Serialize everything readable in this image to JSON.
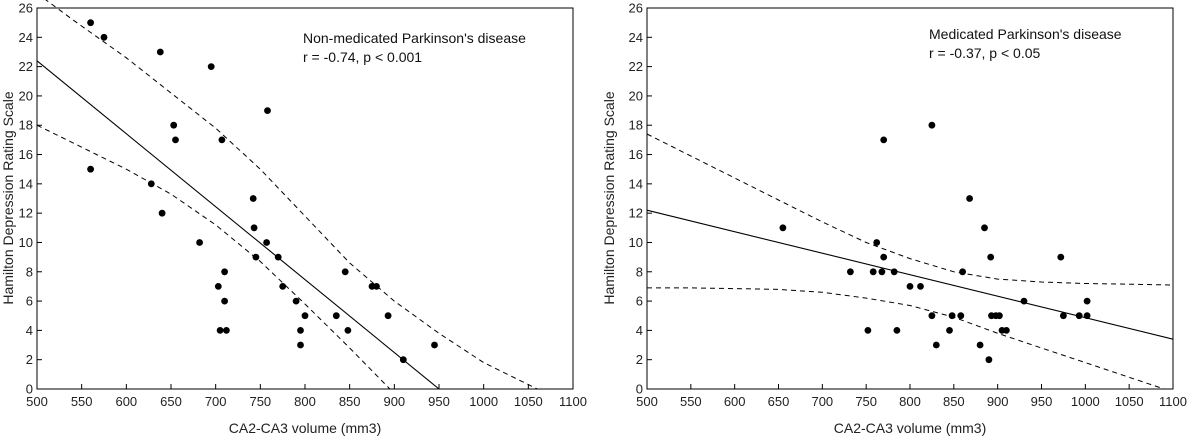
{
  "colors": {
    "ink": "#000000",
    "background": "#ffffff"
  },
  "chart_data": [
    {
      "type": "scatter",
      "title": "",
      "xlabel": "CA2-CA3 volume (mm3)",
      "ylabel": "Hamilton Depression Rating Scale",
      "xlim": [
        500,
        1100
      ],
      "ylim": [
        0,
        26
      ],
      "xticks": [
        500,
        550,
        600,
        650,
        700,
        750,
        800,
        850,
        900,
        950,
        1000,
        1050,
        1100
      ],
      "yticks": [
        0,
        2,
        4,
        6,
        8,
        10,
        12,
        14,
        16,
        18,
        20,
        22,
        24,
        26
      ],
      "annotation": {
        "group": "Non-medicated Parkinson's disease",
        "stats": "r = -0.74, p < 0.001"
      },
      "points": [
        [
          560,
          25
        ],
        [
          575,
          24
        ],
        [
          638,
          23
        ],
        [
          695,
          22
        ],
        [
          758,
          19
        ],
        [
          653,
          18
        ],
        [
          655,
          17
        ],
        [
          707,
          17
        ],
        [
          560,
          15
        ],
        [
          628,
          14
        ],
        [
          640,
          12
        ],
        [
          742,
          13
        ],
        [
          743,
          11
        ],
        [
          682,
          10
        ],
        [
          757,
          10
        ],
        [
          745,
          9
        ],
        [
          770,
          9
        ],
        [
          710,
          8
        ],
        [
          845,
          8
        ],
        [
          703,
          7
        ],
        [
          775,
          7
        ],
        [
          875,
          7
        ],
        [
          880,
          7
        ],
        [
          710,
          6
        ],
        [
          790,
          6
        ],
        [
          705,
          4
        ],
        [
          712,
          4
        ],
        [
          795,
          4
        ],
        [
          848,
          4
        ],
        [
          800,
          5
        ],
        [
          835,
          5
        ],
        [
          893,
          5
        ],
        [
          795,
          3
        ],
        [
          945,
          3
        ],
        [
          910,
          2
        ]
      ],
      "fit_line": {
        "x": [
          500,
          950
        ],
        "y": [
          22.4,
          0
        ]
      },
      "ci_upper": {
        "x": [
          500,
          540,
          600,
          650,
          700,
          750,
          800,
          850,
          900,
          950,
          1000,
          1060
        ],
        "y": [
          27,
          25.2,
          22.6,
          20.2,
          17.8,
          15.0,
          11.8,
          8.6,
          6.0,
          3.8,
          1.8,
          0
        ]
      },
      "ci_lower": {
        "x": [
          500,
          550,
          600,
          650,
          700,
          750,
          800,
          850,
          895
        ],
        "y": [
          18,
          16.5,
          15.0,
          13.3,
          11.2,
          8.7,
          5.8,
          2.8,
          0
        ]
      }
    },
    {
      "type": "scatter",
      "title": "",
      "xlabel": "CA2-CA3 volume (mm3)",
      "ylabel": "Hamilton Depression Rating Scale",
      "xlim": [
        500,
        1100
      ],
      "ylim": [
        0,
        26
      ],
      "xticks": [
        500,
        550,
        600,
        650,
        700,
        750,
        800,
        850,
        900,
        950,
        1000,
        1050,
        1100
      ],
      "yticks": [
        0,
        2,
        4,
        6,
        8,
        10,
        12,
        14,
        16,
        18,
        20,
        22,
        24,
        26
      ],
      "annotation": {
        "group": "Medicated Parkinson's disease",
        "stats": "r = -0.37, p < 0.05"
      },
      "points": [
        [
          825,
          18
        ],
        [
          770,
          17
        ],
        [
          868,
          13
        ],
        [
          655,
          11
        ],
        [
          885,
          11
        ],
        [
          762,
          10
        ],
        [
          770,
          9
        ],
        [
          892,
          9
        ],
        [
          972,
          9
        ],
        [
          732,
          8
        ],
        [
          758,
          8
        ],
        [
          768,
          8
        ],
        [
          782,
          8
        ],
        [
          860,
          8
        ],
        [
          800,
          7
        ],
        [
          812,
          7
        ],
        [
          930,
          6
        ],
        [
          1002,
          6
        ],
        [
          825,
          5
        ],
        [
          848,
          5
        ],
        [
          858,
          5
        ],
        [
          893,
          5
        ],
        [
          898,
          5
        ],
        [
          902,
          5
        ],
        [
          975,
          5
        ],
        [
          993,
          5
        ],
        [
          1002,
          5
        ],
        [
          752,
          4
        ],
        [
          785,
          4
        ],
        [
          845,
          4
        ],
        [
          905,
          4
        ],
        [
          910,
          4
        ],
        [
          830,
          3
        ],
        [
          880,
          3
        ],
        [
          890,
          2
        ]
      ],
      "fit_line": {
        "x": [
          500,
          1100
        ],
        "y": [
          12.2,
          3.4
        ]
      },
      "ci_upper": {
        "x": [
          500,
          550,
          600,
          650,
          700,
          750,
          800,
          850,
          900,
          950,
          1000,
          1050,
          1100
        ],
        "y": [
          17.4,
          15.9,
          14.4,
          12.9,
          11.4,
          10.0,
          8.9,
          8.0,
          7.5,
          7.3,
          7.2,
          7.15,
          7.1
        ]
      },
      "ci_lower": {
        "x": [
          500,
          550,
          600,
          650,
          700,
          750,
          800,
          850,
          900,
          950,
          1000,
          1050,
          1090
        ],
        "y": [
          6.9,
          6.9,
          6.85,
          6.8,
          6.6,
          6.2,
          5.7,
          4.9,
          3.8,
          2.8,
          1.8,
          0.8,
          0
        ]
      }
    }
  ]
}
